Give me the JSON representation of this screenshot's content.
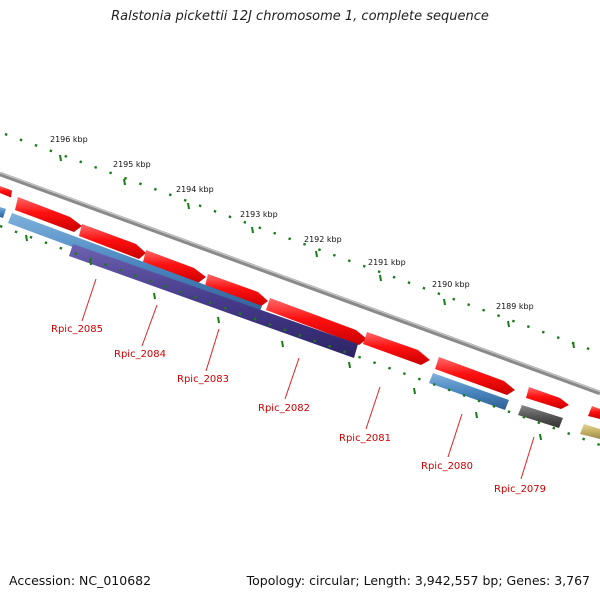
{
  "title": "Ralstonia pickettii 12J chromosome 1, complete sequence",
  "footer": {
    "accession": "Accession: NC_010682",
    "summary": "Topology: circular; Length: 3,942,557 bp; Genes: 3,767"
  },
  "scale_labels": [
    "2196 kbp",
    "2195 kbp",
    "2194 kbp",
    "2193 kbp",
    "2192 kbp",
    "2191 kbp",
    "2190 kbp",
    "2189 kbp"
  ],
  "gene_labels": [
    "Rpic_2085",
    "Rpic_2084",
    "Rpic_2083",
    "Rpic_2082",
    "Rpic_2081",
    "Rpic_2080",
    "Rpic_2079"
  ],
  "colors": {
    "backbone": "#8a8a8a",
    "forward_gene": "#ff1a1a",
    "reverse_gene_blue": "#4a86c0",
    "reverse_gene_purple": "#4a3f8f",
    "reverse_gene_gray": "#555555",
    "reverse_gene_khaki": "#c8b86a",
    "tick": "#1a7a1a",
    "label_line": "#dd2222",
    "label_text": "#cc0000"
  }
}
